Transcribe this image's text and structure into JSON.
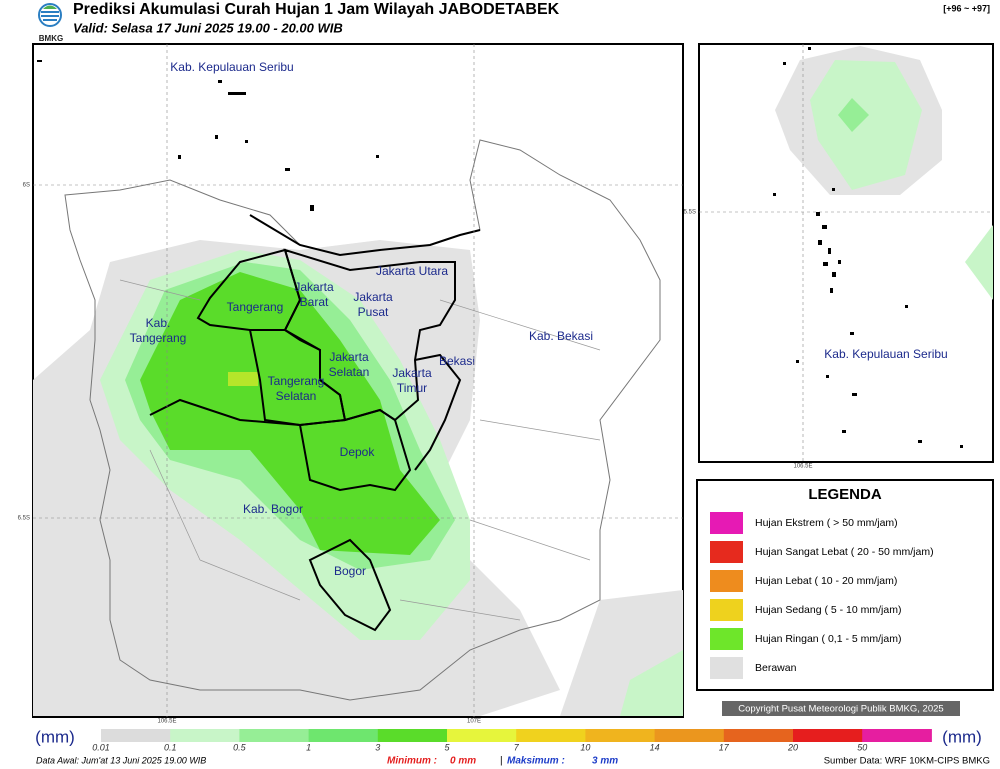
{
  "header": {
    "logo": "BMKG",
    "title": "Prediksi Akumulasi Curah Hujan 1 Jam Wilayah JABODETABEK",
    "valid": "Valid: Selasa 17 Juni 2025 19.00 - 20.00 WIB",
    "range": "[+96 ~ +97]"
  },
  "map": {
    "labels": [
      {
        "lines": [
          "Kab. Kepulauan Seribu"
        ]
      },
      {
        "lines": [
          "Jakarta Utara"
        ]
      },
      {
        "lines": [
          "Jakarta",
          "Barat"
        ]
      },
      {
        "lines": [
          "Jakarta",
          "Pusat"
        ]
      },
      {
        "lines": [
          "Tangerang"
        ]
      },
      {
        "lines": [
          "Kab.",
          "Tangerang"
        ]
      },
      {
        "lines": [
          "Jakarta",
          "Selatan"
        ]
      },
      {
        "lines": [
          "Bekasi"
        ]
      },
      {
        "lines": [
          "Kab. Bekasi"
        ]
      },
      {
        "lines": [
          "Jakarta",
          "Timur"
        ]
      },
      {
        "lines": [
          "Tangerang",
          "Selatan"
        ]
      },
      {
        "lines": [
          "Depok"
        ]
      },
      {
        "lines": [
          "Kab. Bogor"
        ]
      },
      {
        "lines": [
          "Bogor"
        ]
      }
    ],
    "grid": {
      "lat": [
        "6S",
        "6.5S"
      ],
      "lon": [
        "106.5E",
        "107E"
      ]
    }
  },
  "inset": {
    "label": "Kab. Kepulauan Seribu",
    "lat": "5.5S",
    "lon": "106.5E"
  },
  "legend": {
    "title": "LEGENDA",
    "items": [
      {
        "label": "Hujan Ekstrem ( > 50 mm/jam)",
        "color": "#e61ab4"
      },
      {
        "label": "Hujan Sangat Lebat ( 20 - 50 mm/jam)",
        "color": "#e62a1e"
      },
      {
        "label": "Hujan Lebat ( 10 - 20 mm/jam)",
        "color": "#ee8c1e"
      },
      {
        "label": "Hujan Sedang ( 5 - 10 mm/jam)",
        "color": "#eed21e"
      },
      {
        "label": "Hujan Ringan ( 0,1 - 5 mm/jam)",
        "color": "#6ee62a"
      },
      {
        "label": "Berawan",
        "color": "#e0e0e0"
      }
    ]
  },
  "colorbar": {
    "unit": "(mm)",
    "ticks": [
      0.01,
      0.1,
      0.5,
      1,
      3,
      5,
      7,
      10,
      14,
      17,
      20,
      50
    ],
    "colors": [
      "#dcdcdc",
      "#c8f5c8",
      "#96ee96",
      "#6ee66e",
      "#5adc2a",
      "#e6f53c",
      "#f0d21e",
      "#f0b41e",
      "#eb961e",
      "#e6641e",
      "#e61e1e",
      "#e61ea0"
    ]
  },
  "footer": {
    "start": "Data Awal: Jum'at 13 Juni 2025 19.00 WIB",
    "min_label": "Minimum :",
    "min": "0 mm",
    "sep": "|",
    "max_label": "Maksimum :",
    "max": "3 mm",
    "source": "Sumber Data: WRF 10KM-CIPS BMKG"
  },
  "copyright": "Copyright Pusat Meteorologi Publik BMKG, 2025"
}
